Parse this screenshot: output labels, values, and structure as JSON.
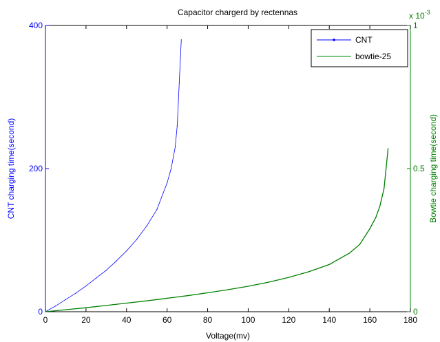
{
  "chart_data": {
    "type": "line",
    "title": "Capacitor chargerd by rectennas",
    "xlabel": "Voltage(mv)",
    "ylabel": "CNT charging time(second)",
    "y2label": "Bowtie charging time(second)",
    "y2_multiplier": "x 10",
    "y2_exponent": "-3",
    "xlim": [
      0,
      180
    ],
    "ylim": [
      0,
      400
    ],
    "y2lim": [
      0,
      1
    ],
    "xticks": [
      "0",
      "20",
      "40",
      "60",
      "80",
      "100",
      "120",
      "140",
      "160",
      "180"
    ],
    "yticks": [
      "0",
      "200",
      "400"
    ],
    "y2ticks": [
      "0",
      "0.5",
      "1"
    ],
    "legend_position": "top-right",
    "colors": {
      "cnt": "#0000ff",
      "bowtie": "#008000",
      "axis": "#000000"
    },
    "series": [
      {
        "name": "CNT",
        "axis": "left",
        "x": [
          0,
          5,
          10,
          15,
          20,
          25,
          30,
          35,
          40,
          45,
          50,
          55,
          60,
          62,
          64,
          65,
          66,
          67
        ],
        "values": [
          0,
          8,
          17,
          26,
          36,
          47,
          58,
          71,
          85,
          101,
          120,
          143,
          180,
          200,
          230,
          260,
          320,
          380
        ]
      },
      {
        "name": "bowtie-25",
        "axis": "right",
        "x": [
          0,
          10,
          20,
          30,
          40,
          50,
          60,
          70,
          80,
          90,
          100,
          110,
          120,
          130,
          140,
          150,
          155,
          160,
          163,
          165,
          167,
          168,
          169
        ],
        "values": [
          0,
          0.007,
          0.014,
          0.022,
          0.03,
          0.038,
          0.047,
          0.056,
          0.066,
          0.077,
          0.089,
          0.103,
          0.12,
          0.14,
          0.165,
          0.205,
          0.235,
          0.29,
          0.33,
          0.37,
          0.43,
          0.5,
          0.57
        ]
      }
    ]
  }
}
